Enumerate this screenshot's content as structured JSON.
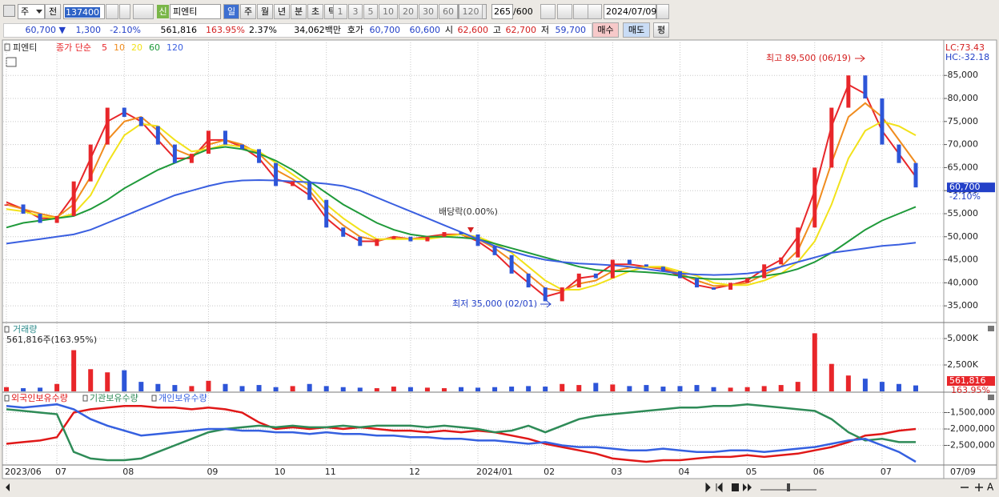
{
  "toolbar": {
    "market": "주",
    "prev": "전",
    "code": "137400",
    "credit": "신",
    "name": "피엔티",
    "periods": [
      "일",
      "주",
      "월",
      "년",
      "분",
      "초",
      "틱"
    ],
    "intervals": [
      "1",
      "3",
      "5",
      "10",
      "20",
      "30",
      "60",
      "120"
    ],
    "count": "265",
    "total": "/600",
    "date": "2024/07/09"
  },
  "quote": {
    "price": "60,700 ▼",
    "change": "1,300",
    "change_rate": "-2.10%",
    "volume": "561,816",
    "volume_rate": "163.95%",
    "turnover": "2.37%",
    "amount": "34,062백만",
    "ask_label": "호가",
    "ask": "60,700",
    "bid": "60,600",
    "open_label": "시",
    "open": "62,600",
    "high_label": "고",
    "high": "62,700",
    "low_label": "저",
    "low": "59,700",
    "buttons": [
      "매수",
      "매도",
      "평"
    ]
  },
  "chart_data": [
    {
      "type": "candlestick",
      "title": "피엔티",
      "legend_prefix": "종가 단순",
      "categories": [
        "2023/06",
        null,
        null,
        "07",
        null,
        null,
        null,
        "08",
        null,
        null,
        null,
        null,
        "09",
        null,
        null,
        null,
        "10",
        null,
        null,
        "11",
        null,
        null,
        null,
        null,
        "12",
        null,
        null,
        null,
        "2024/01",
        null,
        null,
        null,
        "02",
        null,
        null,
        null,
        "03",
        null,
        null,
        null,
        "04",
        null,
        null,
        null,
        "05",
        null,
        null,
        null,
        "06",
        null,
        null,
        null,
        "07",
        null,
        null
      ],
      "values": [
        57000,
        55000,
        53000,
        54500,
        62000,
        70000,
        78000,
        76000,
        74000,
        70000,
        66000,
        68000,
        73000,
        70000,
        69000,
        66000,
        61000,
        62000,
        58000,
        52000,
        50000,
        48000,
        49500,
        50000,
        49000,
        50000,
        51000,
        50500,
        48000,
        46000,
        42000,
        39000,
        36000,
        39000,
        42000,
        41000,
        45000,
        44000,
        43500,
        42500,
        41000,
        39000,
        38500,
        40000,
        41000,
        44000,
        45500,
        52000,
        65000,
        78000,
        85000,
        80000,
        70000,
        66000,
        60700
      ],
      "up_color": "#e8262a",
      "down_color": "#2d55d8",
      "series": [
        {
          "name": "5",
          "color": "#e8262a",
          "values": [
            57500,
            56000,
            54000,
            54000,
            59000,
            67000,
            75000,
            77000,
            75000,
            71000,
            67000,
            67000,
            71000,
            71000,
            69500,
            67000,
            62500,
            61500,
            59000,
            54000,
            51000,
            49000,
            49000,
            50000,
            49500,
            50000,
            50500,
            50500,
            49000,
            46500,
            43000,
            40000,
            37000,
            38000,
            41000,
            41500,
            44000,
            44000,
            43500,
            43000,
            41500,
            39500,
            38800,
            39500,
            40500,
            43000,
            45000,
            50000,
            60000,
            74000,
            83000,
            81000,
            73000,
            68000,
            63000
          ]
        },
        {
          "name": "10",
          "color": "#f08c1e",
          "values": [
            57000,
            56000,
            55000,
            54200,
            57000,
            63000,
            71000,
            75000,
            76000,
            73000,
            69000,
            67500,
            70000,
            71000,
            70000,
            68000,
            64500,
            62500,
            60000,
            55500,
            52500,
            50000,
            49200,
            49800,
            49500,
            49700,
            50300,
            50500,
            49500,
            47500,
            44800,
            41800,
            38800,
            38200,
            39800,
            40500,
            42500,
            43300,
            43500,
            43200,
            42000,
            40500,
            39300,
            39500,
            40000,
            41800,
            43500,
            47000,
            55000,
            66000,
            76000,
            79000,
            76000,
            71000,
            66000
          ]
        },
        {
          "name": "20",
          "color": "#f2e21a",
          "values": [
            56000,
            55500,
            54500,
            54000,
            55000,
            59000,
            66000,
            72000,
            74500,
            74000,
            71000,
            68500,
            69000,
            70000,
            69500,
            68500,
            66000,
            63500,
            61000,
            57000,
            54000,
            51500,
            49500,
            49500,
            49500,
            49500,
            50000,
            50500,
            50000,
            48500,
            46500,
            43500,
            40500,
            38500,
            38500,
            39500,
            41000,
            42500,
            43500,
            43500,
            42500,
            41500,
            40000,
            39500,
            39500,
            40500,
            42000,
            44500,
            49000,
            57000,
            67000,
            73000,
            75000,
            74000,
            72000
          ]
        },
        {
          "name": "60",
          "color": "#1f9a3a",
          "values": [
            52000,
            53000,
            53500,
            54000,
            54500,
            56000,
            58000,
            60500,
            62500,
            64500,
            66000,
            67500,
            69000,
            69500,
            69000,
            68000,
            66500,
            64500,
            62000,
            59500,
            57000,
            55000,
            53000,
            51500,
            50500,
            50000,
            50000,
            49800,
            49500,
            48500,
            47500,
            46500,
            45500,
            44500,
            43500,
            42800,
            42500,
            42500,
            42300,
            42000,
            41500,
            41000,
            40800,
            40800,
            41000,
            41500,
            42000,
            43000,
            44500,
            46500,
            49000,
            51500,
            53500,
            55000,
            56500
          ]
        },
        {
          "name": "120",
          "color": "#3a5fe0",
          "values": [
            48500,
            49000,
            49500,
            50000,
            50500,
            51500,
            53000,
            54500,
            56000,
            57500,
            59000,
            60000,
            61000,
            61800,
            62200,
            62300,
            62200,
            62000,
            61800,
            61500,
            61000,
            60000,
            58500,
            57000,
            55500,
            54000,
            52500,
            51000,
            49500,
            48000,
            46800,
            45800,
            45000,
            44500,
            44200,
            44000,
            43800,
            43500,
            43000,
            42500,
            42000,
            41800,
            41700,
            41800,
            42000,
            42500,
            43500,
            44500,
            45500,
            46500,
            47000,
            47500,
            48000,
            48300,
            48700
          ]
        }
      ],
      "ylim": [
        31900,
        90600
      ],
      "yticks": [
        {
          "value": 35000,
          "label": "35,000"
        },
        {
          "value": 40000,
          "label": "40,000"
        },
        {
          "value": 45000,
          "label": "45,000"
        },
        {
          "value": 50000,
          "label": "50,000"
        },
        {
          "value": 55000,
          "label": "55,000"
        },
        {
          "value": 60000,
          "label": "60,000"
        },
        {
          "value": 65000,
          "label": "65,000"
        },
        {
          "value": 70000,
          "label": "70,000"
        },
        {
          "value": 75000,
          "label": "75,000"
        },
        {
          "value": 80000,
          "label": "80,000"
        },
        {
          "value": 85000,
          "label": "85,000"
        }
      ],
      "grid": true,
      "annotations": [
        "최고 89,500 (06/19)",
        "최저 35,000 (02/01)",
        "배당락(0.00%)"
      ],
      "lc": "LC:73.43",
      "hc": "HC:-32.18",
      "last_value": {
        "value": 60700,
        "label": "60,700"
      },
      "last_rate": "-2.10%",
      "x_end": "07/09"
    },
    {
      "type": "bar",
      "title": "거래량",
      "subtitle": "561,816주(163.95%)",
      "values": [
        400000,
        300000,
        350000,
        700000,
        3900000,
        2100000,
        1800000,
        2000000,
        900000,
        700000,
        600000,
        500000,
        1000000,
        700000,
        500000,
        600000,
        400000,
        500000,
        700000,
        500000,
        400000,
        350000,
        300000,
        450000,
        400000,
        350000,
        300000,
        400000,
        350000,
        400000,
        450000,
        500000,
        450000,
        700000,
        600000,
        800000,
        650000,
        500000,
        600000,
        450000,
        500000,
        600000,
        400000,
        350000,
        400000,
        500000,
        600000,
        900000,
        5500000,
        2600000,
        1500000,
        1200000,
        900000,
        700000,
        561816
      ],
      "ylim": [
        0,
        6290000
      ],
      "yticks": [
        {
          "value": 2500000,
          "label": "2,500K"
        },
        {
          "value": 5000000,
          "label": "5,000K"
        }
      ],
      "grid": true,
      "last_value": {
        "value": 561816,
        "label": "561,816"
      },
      "last_rate": "163.95%"
    },
    {
      "type": "line",
      "series": [
        {
          "name": "외국인보유수량",
          "color": "#e01818",
          "values": [
            -2450000,
            -2400000,
            -2350000,
            -2250000,
            -1500000,
            -1400000,
            -1350000,
            -1300000,
            -1300000,
            -1350000,
            -1350000,
            -1400000,
            -1350000,
            -1400000,
            -1500000,
            -1800000,
            -2000000,
            -1950000,
            -2000000,
            -1950000,
            -2000000,
            -1950000,
            -2000000,
            -2050000,
            -2050000,
            -2100000,
            -2050000,
            -2100000,
            -2050000,
            -2100000,
            -2200000,
            -2300000,
            -2450000,
            -2550000,
            -2650000,
            -2750000,
            -2900000,
            -2950000,
            -3000000,
            -2950000,
            -2950000,
            -2900000,
            -2850000,
            -2850000,
            -2800000,
            -2850000,
            -2800000,
            -2750000,
            -2650000,
            -2550000,
            -2400000,
            -2200000,
            -2150000,
            -2050000,
            -2000000
          ]
        },
        {
          "name": "기관보유수량",
          "color": "#2e8b57",
          "values": [
            -1400000,
            -1450000,
            -1500000,
            -1550000,
            -2700000,
            -2900000,
            -2950000,
            -2950000,
            -2900000,
            -2700000,
            -2500000,
            -2300000,
            -2100000,
            -2000000,
            -1950000,
            -1900000,
            -1950000,
            -1900000,
            -1950000,
            -1950000,
            -1900000,
            -1950000,
            -1900000,
            -1900000,
            -1900000,
            -1950000,
            -1900000,
            -1950000,
            -2000000,
            -2100000,
            -2050000,
            -1900000,
            -2100000,
            -1900000,
            -1700000,
            -1600000,
            -1550000,
            -1500000,
            -1450000,
            -1400000,
            -1350000,
            -1350000,
            -1300000,
            -1300000,
            -1250000,
            -1300000,
            -1350000,
            -1400000,
            -1450000,
            -1700000,
            -2100000,
            -2350000,
            -2300000,
            -2400000,
            -2400000
          ]
        },
        {
          "name": "개인보유수량",
          "color": "#3560e0",
          "values": [
            -1300000,
            -1350000,
            -1300000,
            -1250000,
            -1400000,
            -1700000,
            -1900000,
            -2050000,
            -2200000,
            -2150000,
            -2100000,
            -2050000,
            -2000000,
            -2000000,
            -2050000,
            -2050000,
            -2100000,
            -2100000,
            -2150000,
            -2100000,
            -2150000,
            -2150000,
            -2200000,
            -2200000,
            -2250000,
            -2250000,
            -2300000,
            -2300000,
            -2350000,
            -2350000,
            -2400000,
            -2450000,
            -2400000,
            -2500000,
            -2550000,
            -2550000,
            -2600000,
            -2650000,
            -2650000,
            -2600000,
            -2650000,
            -2700000,
            -2700000,
            -2650000,
            -2650000,
            -2700000,
            -2650000,
            -2600000,
            -2550000,
            -2450000,
            -2350000,
            -2300000,
            -2500000,
            -2700000,
            -3000000
          ]
        }
      ],
      "ylim": [
        -3047600,
        -952400
      ],
      "yticks": [
        {
          "value": -2500000,
          "label": "-2,500,000"
        },
        {
          "value": -2000000,
          "label": "-2,000,000"
        },
        {
          "value": -1500000,
          "label": "-1,500,000"
        }
      ],
      "grid": true
    }
  ]
}
